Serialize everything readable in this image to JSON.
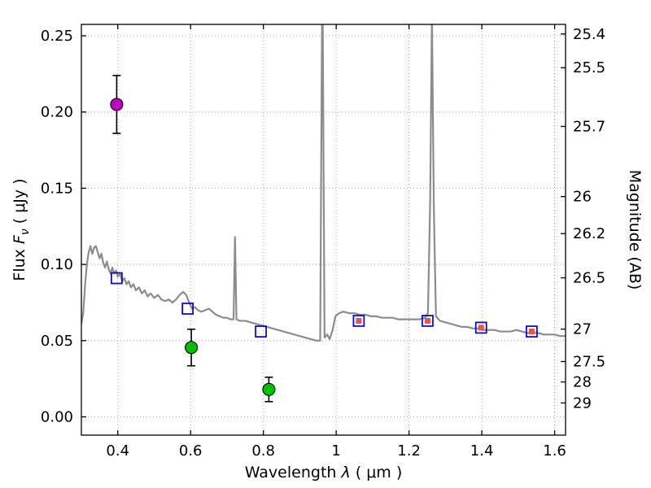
{
  "figure": {
    "background": "#ffffff",
    "axes_color": "#000000"
  },
  "chart_data": {
    "type": "line",
    "title": "",
    "xlabel": {
      "prefix": "Wavelength  ",
      "symbol": "λ",
      "suffix": " ( μm )"
    },
    "ylabel_left": {
      "prefix": "Flux  ",
      "symbol": "F",
      "subscript": "ν",
      "suffix": "  ( μJy )"
    },
    "ylabel_right": "Magnitude (AB)",
    "xlim": [
      0.3,
      1.63
    ],
    "ylim": [
      -0.012,
      0.2575
    ],
    "grid": {
      "show": true,
      "color": "#a8a8a8",
      "style": "dotted"
    },
    "mag_zero_point": 23.9,
    "x_ticks": [
      {
        "v": 0.4,
        "label": "0.4"
      },
      {
        "v": 0.6,
        "label": "0.6"
      },
      {
        "v": 0.8,
        "label": "0.8"
      },
      {
        "v": 1.0,
        "label": "1"
      },
      {
        "v": 1.2,
        "label": "1.2"
      },
      {
        "v": 1.4,
        "label": "1.4"
      },
      {
        "v": 1.6,
        "label": "1.6"
      }
    ],
    "y_ticks_left": [
      {
        "v": 0.0,
        "label": "0.00"
      },
      {
        "v": 0.05,
        "label": "0.05"
      },
      {
        "v": 0.1,
        "label": "0.10"
      },
      {
        "v": 0.15,
        "label": "0.15"
      },
      {
        "v": 0.2,
        "label": "0.20"
      },
      {
        "v": 0.25,
        "label": "0.25"
      }
    ],
    "y_ticks_right": [
      {
        "mag": 25.4,
        "label": "25.4"
      },
      {
        "mag": 25.5,
        "label": "25.5"
      },
      {
        "mag": 25.7,
        "label": "25.7"
      },
      {
        "mag": 26.0,
        "label": "26"
      },
      {
        "mag": 26.2,
        "label": "26.2"
      },
      {
        "mag": 26.5,
        "label": "26.5"
      },
      {
        "mag": 27.0,
        "label": "27"
      },
      {
        "mag": 27.5,
        "label": "27.5"
      },
      {
        "mag": 28.0,
        "label": "28"
      },
      {
        "mag": 29.0,
        "label": "29"
      }
    ],
    "spectrum": {
      "name": "model-spectrum",
      "color": "#8c8c8c",
      "width": 2.2,
      "points": [
        [
          0.3,
          0.061
        ],
        [
          0.305,
          0.068
        ],
        [
          0.31,
          0.086
        ],
        [
          0.315,
          0.1
        ],
        [
          0.32,
          0.108
        ],
        [
          0.325,
          0.112
        ],
        [
          0.33,
          0.107
        ],
        [
          0.335,
          0.111
        ],
        [
          0.34,
          0.112
        ],
        [
          0.345,
          0.108
        ],
        [
          0.35,
          0.104
        ],
        [
          0.355,
          0.107
        ],
        [
          0.36,
          0.101
        ],
        [
          0.365,
          0.098
        ],
        [
          0.37,
          0.102
        ],
        [
          0.375,
          0.097
        ],
        [
          0.38,
          0.094
        ],
        [
          0.385,
          0.098
        ],
        [
          0.39,
          0.094
        ],
        [
          0.395,
          0.096
        ],
        [
          0.4,
          0.092
        ],
        [
          0.406,
          0.094
        ],
        [
          0.412,
          0.089
        ],
        [
          0.418,
          0.091
        ],
        [
          0.424,
          0.087
        ],
        [
          0.43,
          0.089
        ],
        [
          0.436,
          0.085
        ],
        [
          0.443,
          0.087
        ],
        [
          0.45,
          0.083
        ],
        [
          0.458,
          0.085
        ],
        [
          0.466,
          0.081
        ],
        [
          0.474,
          0.083
        ],
        [
          0.482,
          0.079
        ],
        [
          0.49,
          0.081
        ],
        [
          0.5,
          0.078
        ],
        [
          0.51,
          0.08
        ],
        [
          0.52,
          0.077
        ],
        [
          0.53,
          0.076
        ],
        [
          0.54,
          0.077
        ],
        [
          0.55,
          0.075
        ],
        [
          0.56,
          0.077
        ],
        [
          0.57,
          0.08
        ],
        [
          0.58,
          0.082
        ],
        [
          0.588,
          0.08
        ],
        [
          0.596,
          0.075
        ],
        [
          0.604,
          0.071
        ],
        [
          0.612,
          0.072
        ],
        [
          0.62,
          0.07
        ],
        [
          0.63,
          0.069
        ],
        [
          0.64,
          0.07
        ],
        [
          0.65,
          0.071
        ],
        [
          0.66,
          0.069
        ],
        [
          0.67,
          0.067
        ],
        [
          0.68,
          0.066
        ],
        [
          0.69,
          0.065
        ],
        [
          0.7,
          0.065
        ],
        [
          0.71,
          0.064
        ],
        [
          0.718,
          0.064
        ],
        [
          0.722,
          0.118
        ],
        [
          0.726,
          0.064
        ],
        [
          0.735,
          0.063
        ],
        [
          0.75,
          0.063
        ],
        [
          0.765,
          0.062
        ],
        [
          0.78,
          0.061
        ],
        [
          0.795,
          0.06
        ],
        [
          0.81,
          0.059
        ],
        [
          0.825,
          0.058
        ],
        [
          0.84,
          0.057
        ],
        [
          0.855,
          0.056
        ],
        [
          0.87,
          0.055
        ],
        [
          0.885,
          0.054
        ],
        [
          0.9,
          0.053
        ],
        [
          0.915,
          0.052
        ],
        [
          0.93,
          0.051
        ],
        [
          0.945,
          0.05
        ],
        [
          0.956,
          0.05
        ],
        [
          0.962,
          0.3
        ],
        [
          0.968,
          0.052
        ],
        [
          0.975,
          0.054
        ],
        [
          0.982,
          0.051
        ],
        [
          0.99,
          0.057
        ],
        [
          0.998,
          0.066
        ],
        [
          1.008,
          0.068
        ],
        [
          1.02,
          0.069
        ],
        [
          1.035,
          0.068
        ],
        [
          1.05,
          0.068
        ],
        [
          1.065,
          0.067
        ],
        [
          1.08,
          0.067
        ],
        [
          1.095,
          0.066
        ],
        [
          1.11,
          0.066
        ],
        [
          1.125,
          0.065
        ],
        [
          1.14,
          0.065
        ],
        [
          1.155,
          0.065
        ],
        [
          1.17,
          0.064
        ],
        [
          1.185,
          0.064
        ],
        [
          1.2,
          0.064
        ],
        [
          1.215,
          0.064
        ],
        [
          1.23,
          0.064
        ],
        [
          1.244,
          0.065
        ],
        [
          1.252,
          0.068
        ],
        [
          1.258,
          0.14
        ],
        [
          1.263,
          0.265
        ],
        [
          1.268,
          0.14
        ],
        [
          1.274,
          0.066
        ],
        [
          1.285,
          0.063
        ],
        [
          1.3,
          0.062
        ],
        [
          1.315,
          0.061
        ],
        [
          1.33,
          0.06
        ],
        [
          1.345,
          0.059
        ],
        [
          1.36,
          0.059
        ],
        [
          1.375,
          0.058
        ],
        [
          1.39,
          0.058
        ],
        [
          1.405,
          0.057
        ],
        [
          1.42,
          0.057
        ],
        [
          1.435,
          0.057
        ],
        [
          1.45,
          0.056
        ],
        [
          1.465,
          0.056
        ],
        [
          1.48,
          0.056
        ],
        [
          1.495,
          0.057
        ],
        [
          1.51,
          0.056
        ],
        [
          1.525,
          0.055
        ],
        [
          1.54,
          0.055
        ],
        [
          1.555,
          0.055
        ],
        [
          1.57,
          0.054
        ],
        [
          1.585,
          0.054
        ],
        [
          1.6,
          0.054
        ],
        [
          1.615,
          0.053
        ],
        [
          1.63,
          0.053
        ]
      ]
    },
    "model_photometry": {
      "name": "model-photometry-squares",
      "marker": "open-square",
      "color": "#0000e0",
      "size": 13,
      "points": [
        [
          0.397,
          0.091
        ],
        [
          0.592,
          0.071
        ],
        [
          0.793,
          0.056
        ],
        [
          1.062,
          0.063
        ],
        [
          1.251,
          0.063
        ],
        [
          1.398,
          0.0585
        ],
        [
          1.537,
          0.056
        ]
      ]
    },
    "template_fluxes": {
      "name": "template-flux-points",
      "marker": "filled-square",
      "color": "#e05555",
      "size": 7,
      "points": [
        [
          1.062,
          0.063
        ],
        [
          1.251,
          0.063
        ],
        [
          1.398,
          0.0585
        ],
        [
          1.537,
          0.056
        ]
      ]
    },
    "observed_green": {
      "name": "observed-photometry-green",
      "marker": "circle",
      "fill": "#00c000",
      "edge": "#000000",
      "radius": 7.5,
      "points": [
        {
          "x": 0.602,
          "y": 0.0455,
          "yerr": 0.012
        },
        {
          "x": 0.815,
          "y": 0.018,
          "yerr": 0.008
        }
      ]
    },
    "observed_magenta": {
      "name": "observed-photometry-magenta",
      "marker": "circle",
      "fill": "#bf00bf",
      "edge": "#000000",
      "radius": 7.5,
      "points": [
        {
          "x": 0.397,
          "y": 0.205,
          "yerr": 0.019
        }
      ]
    }
  }
}
